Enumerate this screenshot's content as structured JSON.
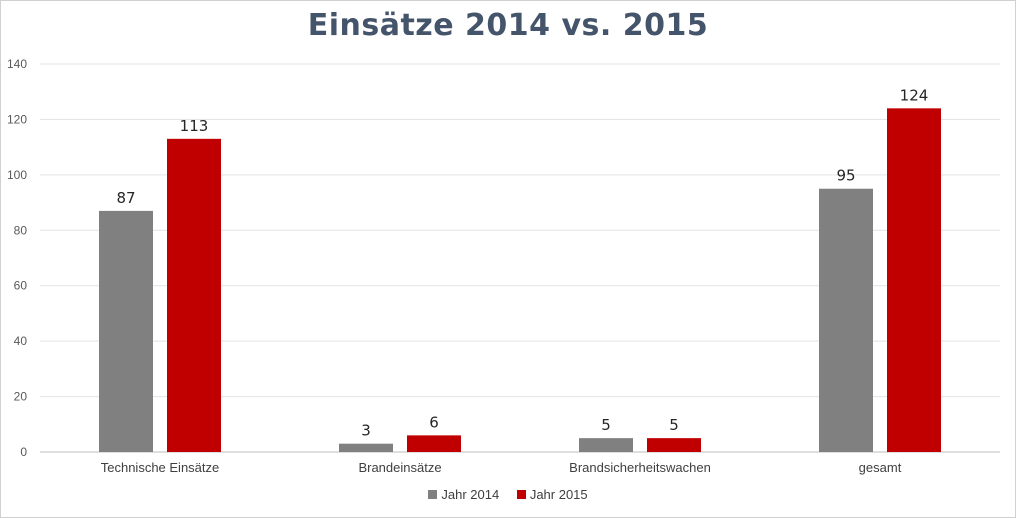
{
  "chart_data": {
    "type": "bar",
    "title": "Einsätze 2014 vs. 2015",
    "xlabel": "",
    "ylabel": "",
    "categories": [
      "Technische Einsätze",
      "Brandeinsätze",
      "Brandsicherheitswachen",
      "gesamt"
    ],
    "series": [
      {
        "name": "Jahr 2014",
        "color": "#808080",
        "values": [
          87,
          3,
          5,
          95
        ]
      },
      {
        "name": "Jahr 2015",
        "color": "#c00000",
        "values": [
          113,
          6,
          5,
          124
        ]
      }
    ],
    "ylim": [
      0,
      140
    ],
    "yticks": [
      "0",
      "20",
      "40",
      "60",
      "80",
      "100",
      "120",
      "140"
    ],
    "grid": true,
    "legend_position": "bottom"
  }
}
